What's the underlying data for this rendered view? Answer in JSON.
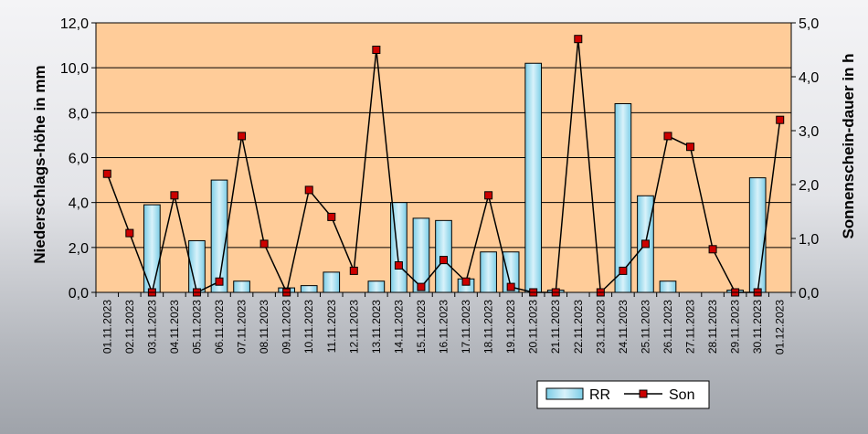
{
  "chart_data": {
    "type": "bar",
    "categories": [
      "01.11.2023",
      "02.11.2023",
      "03.11.2023",
      "04.11.2023",
      "05.11.2023",
      "06.11.2023",
      "07.11.2023",
      "08.11.2023",
      "09.11.2023",
      "10.11.2023",
      "11.11.2023",
      "12.11.2023",
      "13.11.2023",
      "14.11.2023",
      "15.11.2023",
      "16.11.2023",
      "17.11.2023",
      "18.11.2023",
      "19.11.2023",
      "20.11.2023",
      "21.11.2023",
      "22.11.2023",
      "23.11.2023",
      "24.11.2023",
      "25.11.2023",
      "26.11.2023",
      "27.11.2023",
      "28.11.2023",
      "29.11.2023",
      "30.11.2023",
      "01.12.2023"
    ],
    "series": [
      {
        "name": "RR",
        "type": "bar",
        "axis": "left",
        "values": [
          0.0,
          0.0,
          3.9,
          0.0,
          2.3,
          5.0,
          0.5,
          0.0,
          0.2,
          0.3,
          0.9,
          0.0,
          0.5,
          4.0,
          3.3,
          3.2,
          0.6,
          1.8,
          1.8,
          10.2,
          0.1,
          0.0,
          0.0,
          8.4,
          4.3,
          0.5,
          0.0,
          0.0,
          0.1,
          5.1,
          0.0
        ]
      },
      {
        "name": "Son",
        "type": "line",
        "axis": "right",
        "values": [
          2.2,
          1.1,
          0.0,
          1.8,
          0.0,
          0.2,
          2.9,
          0.9,
          0.0,
          1.9,
          1.4,
          0.4,
          4.5,
          0.5,
          0.1,
          0.6,
          0.2,
          1.8,
          0.1,
          0.0,
          0.0,
          4.7,
          0.0,
          0.4,
          0.9,
          2.9,
          2.7,
          0.8,
          0.0,
          0.0,
          3.2
        ]
      }
    ],
    "ylabel_left": "Niederschlags-höhe in mm",
    "ylabel_right": "Sonnenschein-dauer in h",
    "ylim_left": [
      0,
      12
    ],
    "ylim_right": [
      0,
      5
    ],
    "yticks_left": [
      "0,0",
      "2,0",
      "4,0",
      "6,0",
      "8,0",
      "10,0",
      "12,0"
    ],
    "yticks_right": [
      "0,0",
      "1,0",
      "2,0",
      "3,0",
      "4,0",
      "5,0"
    ],
    "grid": "horizontal",
    "legend_position": "bottom-right",
    "colors": {
      "plot_background": "#ffcc99",
      "bar_fill": "#a8dff0",
      "bar_stroke": "#000000",
      "line": "#000000",
      "marker_fill": "#cc0000"
    }
  }
}
